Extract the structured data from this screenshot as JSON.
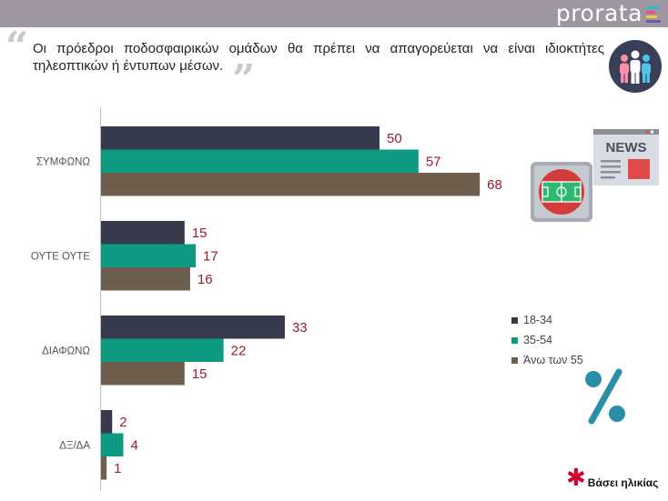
{
  "brand": {
    "name": "prorata",
    "mark_colors": [
      "#3bb3c3",
      "#e84b8a",
      "#f6c445",
      "#6b5ba8"
    ]
  },
  "question": {
    "text": "Οι πρόεδροι ποδοσφαιρικών ομάδων θα πρέπει να απαγορεύεται να είναι ιδιοκτήτες τηλεοπτικών ή έντυπων μέσων."
  },
  "icons": {
    "people": "people-group-icon",
    "news": "newspaper-icon",
    "stadium": "stadium-icon",
    "percent": "percent-icon",
    "quote": "quote-icon"
  },
  "news_label": "NEWS",
  "footnote": {
    "marker": "✱",
    "text": "Βάσει ηλικίας",
    "color": "#d6002a"
  },
  "chart_data": {
    "type": "bar",
    "orientation": "horizontal",
    "categories": [
      "ΣΥΜΦΩΝΩ",
      "ΟΥΤΕ ΟΥΤΕ",
      "ΔΙΑΦΩΝΩ",
      "ΔΞ/ΔΑ"
    ],
    "series": [
      {
        "name": "18-34",
        "color": "#363a4a",
        "values": [
          50,
          15,
          33,
          2
        ]
      },
      {
        "name": "35-54",
        "color": "#0e9a80",
        "values": [
          57,
          17,
          22,
          4
        ]
      },
      {
        "name": "Άνω των 55",
        "color": "#6e5e4e",
        "values": [
          68,
          16,
          15,
          1
        ]
      }
    ],
    "value_label_color": "#9b1b30",
    "xlim": [
      0,
      100
    ],
    "legend_position": "right",
    "grid": false
  }
}
